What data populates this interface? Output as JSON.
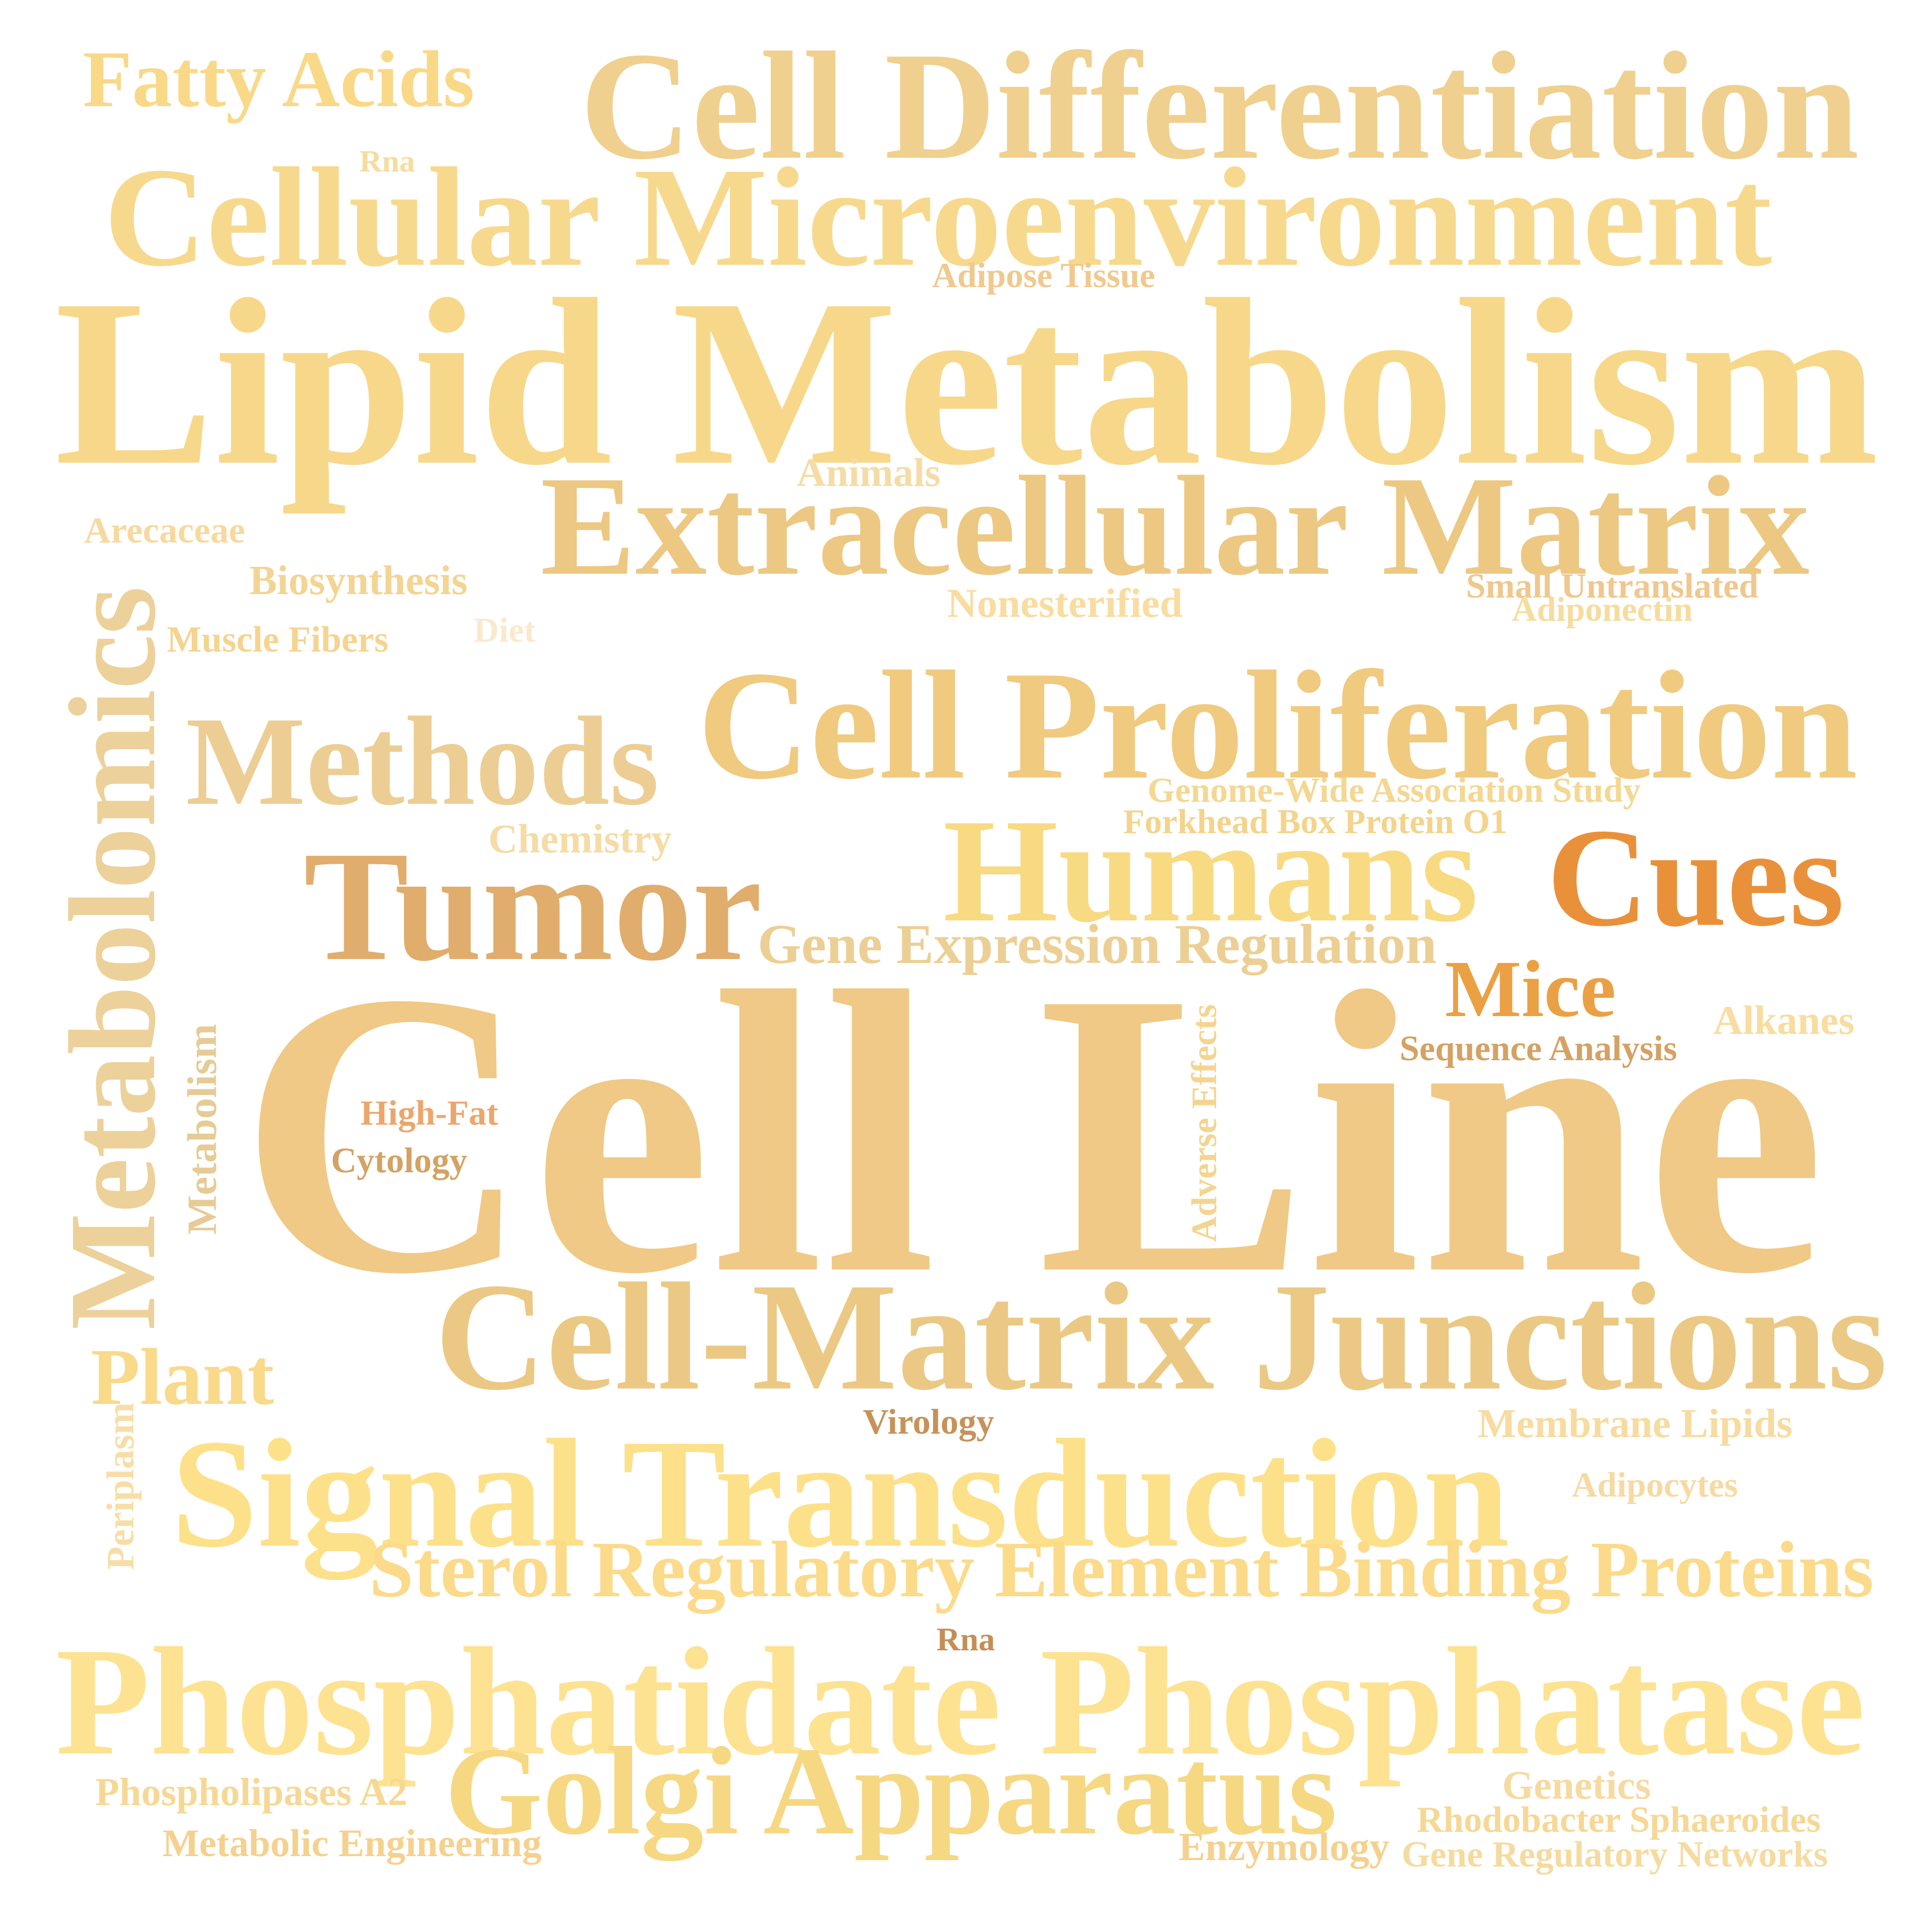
{
  "words": [
    {
      "text": "Fatty Acids",
      "color": "#f9d888"
    },
    {
      "text": "Cell Differentiation",
      "color": "#f0d08e"
    },
    {
      "text": "Rna",
      "color": "#f6dc9e"
    },
    {
      "text": "Cellular Microenvironment",
      "color": "#f7d98e"
    },
    {
      "text": "Adipose Tissue",
      "color": "#f0c98f"
    },
    {
      "text": "Lipid Metabolism",
      "color": "#f7d88a"
    },
    {
      "text": "Animals",
      "color": "#f5dca6"
    },
    {
      "text": "Extracellular Matrix",
      "color": "#ecc883"
    },
    {
      "text": "Arecaceae",
      "color": "#f7d9a0"
    },
    {
      "text": "Biosynthesis",
      "color": "#f3d493"
    },
    {
      "text": "Small Untranslated",
      "color": "#f0c78e"
    },
    {
      "text": "Adiponectin",
      "color": "#f6dc9e"
    },
    {
      "text": "Nonesterified",
      "color": "#f9dca0"
    },
    {
      "text": "Diet",
      "color": "#faeacd"
    },
    {
      "text": "Muscle Fibers",
      "color": "#f5d490"
    },
    {
      "text": "Metabolomics",
      "color": "#ecd19a"
    },
    {
      "text": "Cell Proliferation",
      "color": "#f0ca7f"
    },
    {
      "text": "Methods",
      "color": "#ecce94"
    },
    {
      "text": "Genome-Wide Association Study",
      "color": "#f4d792"
    },
    {
      "text": "Forkhead Box Protein O1",
      "color": "#f4d38b"
    },
    {
      "text": "Chemistry",
      "color": "#f5dca5"
    },
    {
      "text": "Humans",
      "color": "#f8da82"
    },
    {
      "text": "Cues",
      "color": "#e9913a"
    },
    {
      "text": "Tumor",
      "color": "#e0ad6d"
    },
    {
      "text": "Gene Expression Regulation",
      "color": "#eccf94"
    },
    {
      "text": "Mice",
      "color": "#eba044"
    },
    {
      "text": "Alkanes",
      "color": "#f9dca0"
    },
    {
      "text": "Sequence Analysis",
      "color": "#d4a264"
    },
    {
      "text": "Metabolism",
      "color": "#e6cb95"
    },
    {
      "text": "High-Fat",
      "color": "#eca66c"
    },
    {
      "text": "Cytology",
      "color": "#d4a264"
    },
    {
      "text": "Cell Line",
      "color": "#efc985"
    },
    {
      "text": "Adverse Effects",
      "color": "#f4d590"
    },
    {
      "text": "Cell-Matrix Junctions",
      "color": "#ebc984"
    },
    {
      "text": "Plant",
      "color": "#f9d98a"
    },
    {
      "text": "Virology",
      "color": "#c7925a"
    },
    {
      "text": "Membrane Lipids",
      "color": "#f7dba0"
    },
    {
      "text": "Periplasm",
      "color": "#f7dea8"
    },
    {
      "text": "Signal Transduction",
      "color": "#fde18a"
    },
    {
      "text": "Adipocytes",
      "color": "#f6daa2"
    },
    {
      "text": "Sterol Regulatory Element Binding Proteins",
      "color": "#fbda8a"
    },
    {
      "text": "Rna",
      "color": "#c48e56"
    },
    {
      "text": "Phosphatidate Phosphatase",
      "color": "#fde291"
    },
    {
      "text": "Phospholipases A2",
      "color": "#f6d896"
    },
    {
      "text": "Golgi Apparatus",
      "color": "#f6d883"
    },
    {
      "text": "Genetics",
      "color": "#f6daa0"
    },
    {
      "text": "Rhodobacter Sphaeroides",
      "color": "#f6d896"
    },
    {
      "text": "Metabolic Engineering",
      "color": "#f4d18e"
    },
    {
      "text": "Enzymology",
      "color": "#f4d18e"
    },
    {
      "text": "Gene Regulatory Networks",
      "color": "#f5dba0"
    }
  ]
}
